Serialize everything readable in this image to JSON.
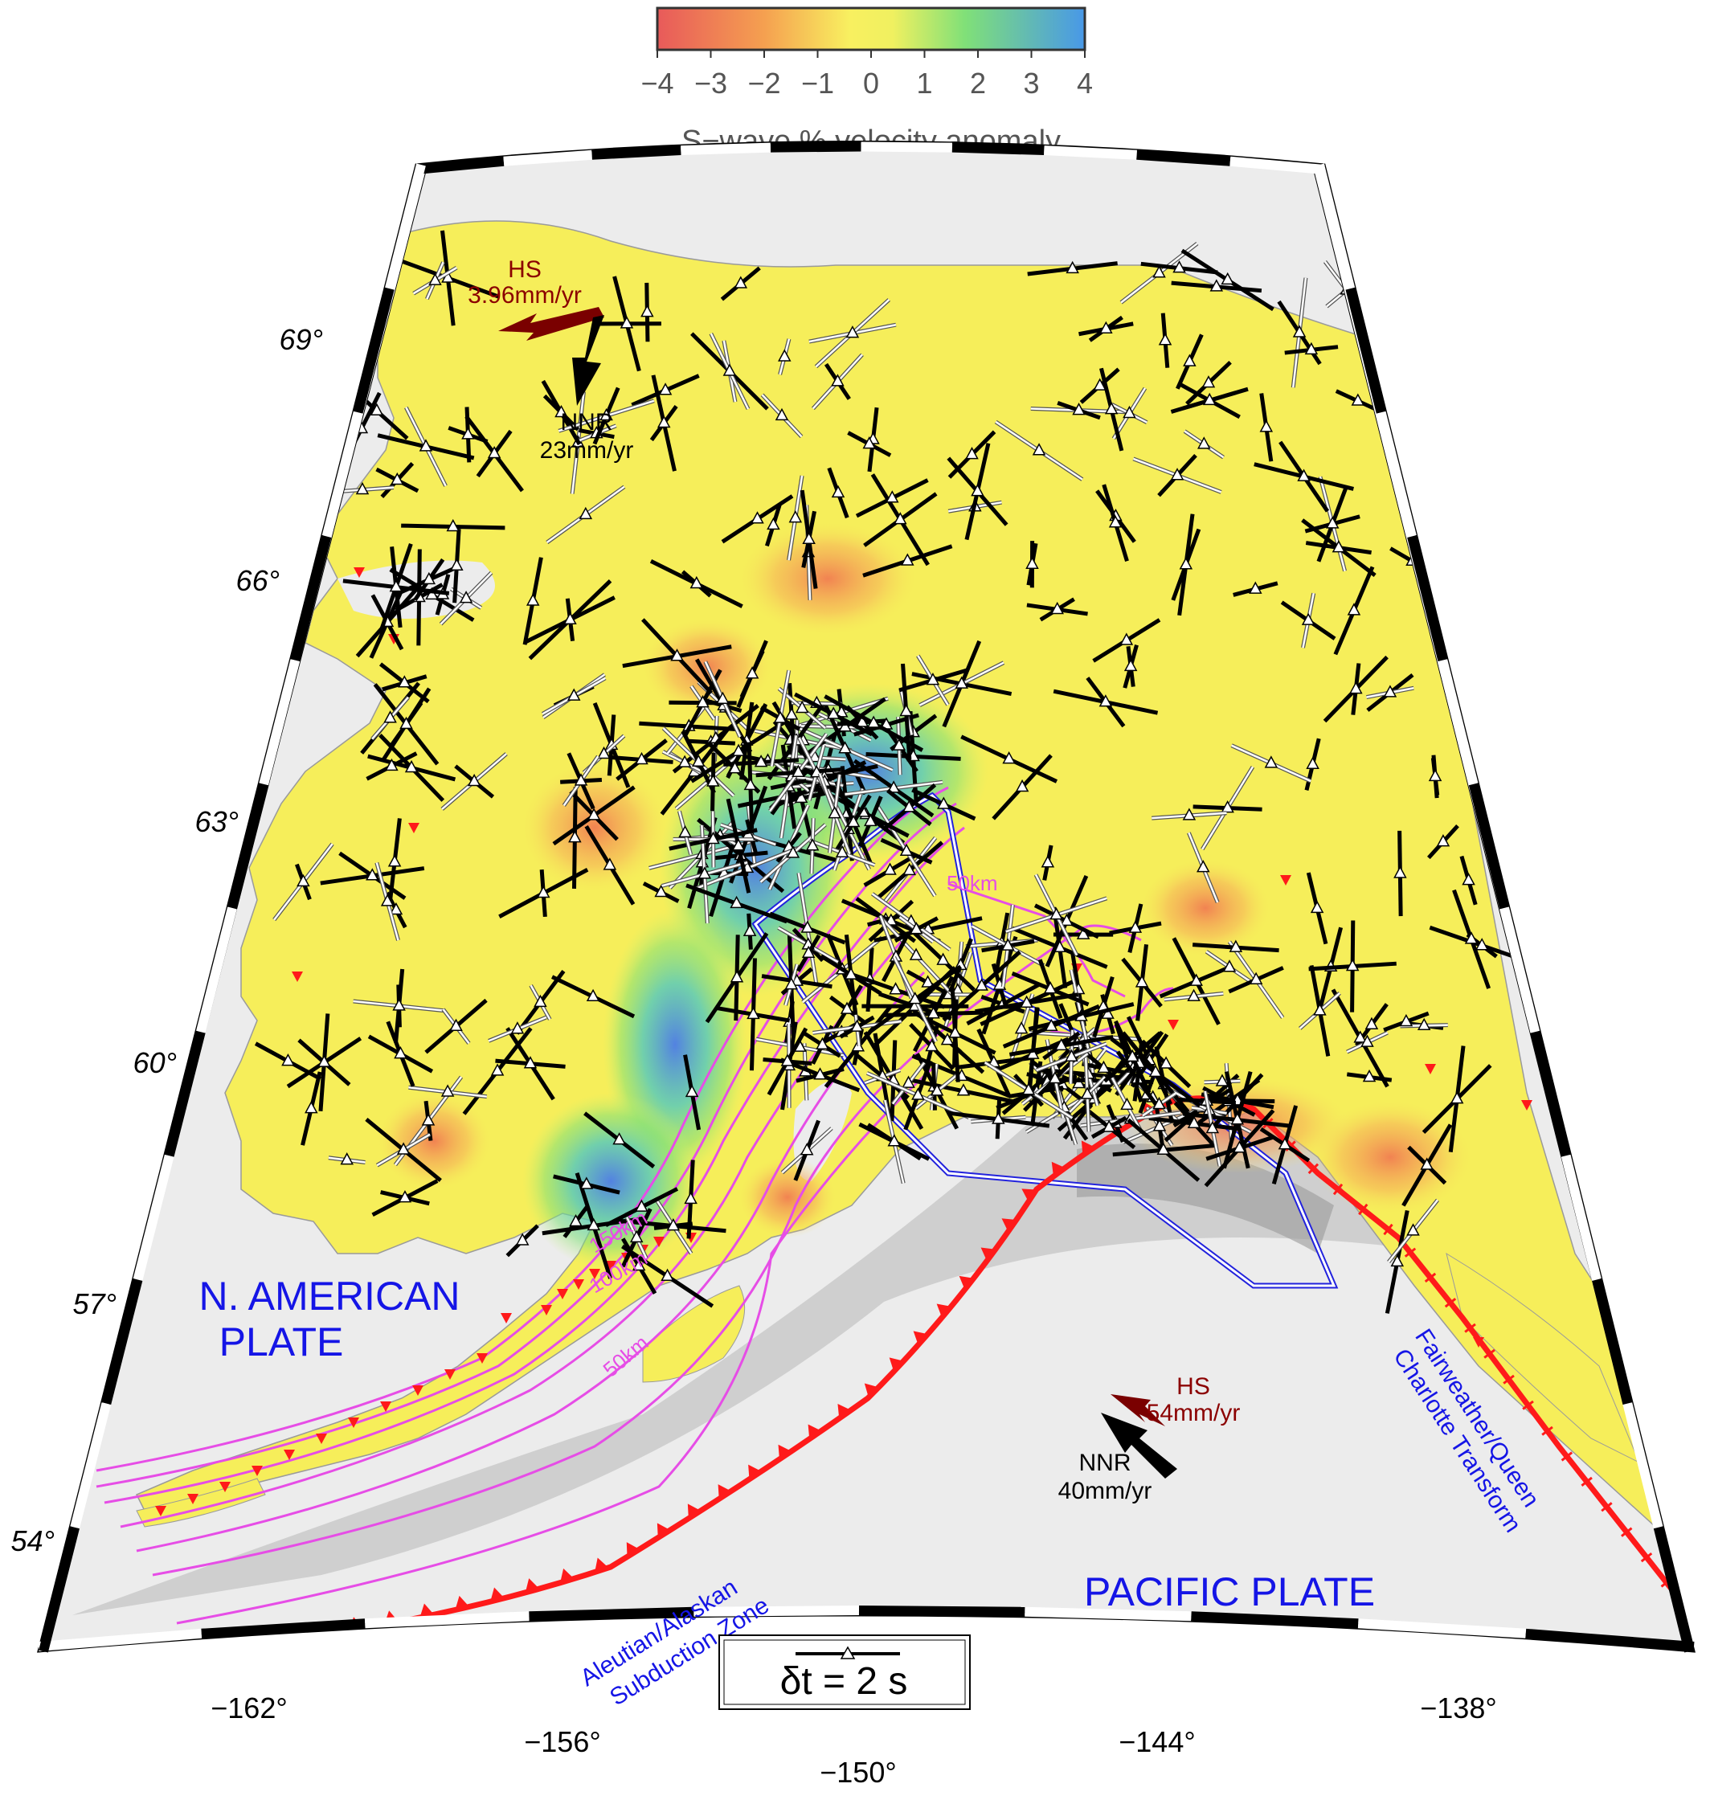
{
  "colorbar": {
    "ticks": [
      "−4",
      "−3",
      "−2",
      "−1",
      "0",
      "1",
      "2",
      "3",
      "4"
    ],
    "title": "S−wave % velocity anomaly",
    "colors": [
      "#e85a5a",
      "#f5a050",
      "#f8f060",
      "#80e078",
      "#4898e8"
    ]
  },
  "latitude_labels": [
    "69°",
    "66°",
    "63°",
    "60°",
    "57°",
    "54°"
  ],
  "longitude_labels": [
    "−162°",
    "−156°",
    "−150°",
    "−144°",
    "−138°"
  ],
  "plates": {
    "north_american": [
      "N. AMERICAN",
      "PLATE"
    ],
    "pacific": "PACIFIC PLATE"
  },
  "features": {
    "subduction_zone": [
      "Aleutian/Alaskan",
      "Subduction Zone"
    ],
    "transform": [
      "Fairweather/Queen",
      "Charlotte Transform"
    ]
  },
  "motion_vectors": {
    "north": {
      "hs_label": "HS",
      "hs_rate": "3.96mm/yr",
      "nnr_label": "NNR",
      "nnr_rate": "23mm/yr"
    },
    "pacific": {
      "hs_label": "HS",
      "hs_rate": "54mm/yr",
      "nnr_label": "NNR",
      "nnr_rate": "40mm/yr"
    }
  },
  "slab_contours": [
    "150km",
    "100km",
    "50km",
    "50km"
  ],
  "scale_legend": "δt = 2 s",
  "legend_colors": {
    "land": "#f8f060",
    "ocean": "#e8e8e8",
    "trench": "#ff1a1a",
    "slab_contour": "#e64de6",
    "block_outline": "#2222dd",
    "hs_arrow": "#7a0000",
    "nnr_arrow": "#000000"
  }
}
